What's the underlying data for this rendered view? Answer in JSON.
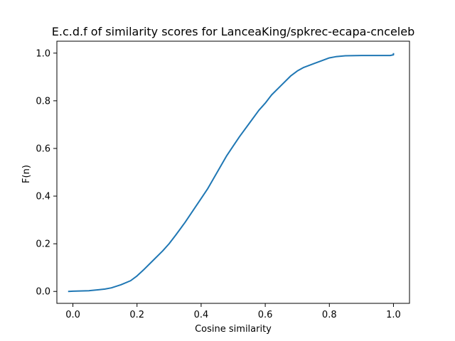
{
  "chart_data": {
    "type": "line",
    "title": "E.c.d.f of similarity scores for LanceaKing/spkrec-ecapa-cnceleb",
    "xlabel": "Cosine similarity",
    "ylabel": "F(n)",
    "xlim": [
      -0.05,
      1.05
    ],
    "ylim": [
      -0.05,
      1.05
    ],
    "x_ticks": [
      {
        "value": 0.0,
        "label": "0.0"
      },
      {
        "value": 0.2,
        "label": "0.2"
      },
      {
        "value": 0.4,
        "label": "0.4"
      },
      {
        "value": 0.6,
        "label": "0.6"
      },
      {
        "value": 0.8,
        "label": "0.8"
      },
      {
        "value": 1.0,
        "label": "1.0"
      }
    ],
    "y_ticks": [
      {
        "value": 0.0,
        "label": "0.0"
      },
      {
        "value": 0.2,
        "label": "0.2"
      },
      {
        "value": 0.4,
        "label": "0.4"
      },
      {
        "value": 0.6,
        "label": "0.6"
      },
      {
        "value": 0.8,
        "label": "0.8"
      },
      {
        "value": 1.0,
        "label": "1.0"
      }
    ],
    "grid": false,
    "series": [
      {
        "color": "#1f77b4",
        "x": [
          -0.015,
          0.0,
          0.05,
          0.08,
          0.1,
          0.12,
          0.15,
          0.18,
          0.2,
          0.22,
          0.25,
          0.28,
          0.3,
          0.32,
          0.35,
          0.38,
          0.4,
          0.42,
          0.45,
          0.48,
          0.5,
          0.52,
          0.55,
          0.58,
          0.6,
          0.62,
          0.65,
          0.68,
          0.7,
          0.72,
          0.75,
          0.78,
          0.8,
          0.82,
          0.85,
          0.9,
          0.95,
          0.99,
          1.0,
          1.0
        ],
        "y": [
          0.0,
          0.001,
          0.003,
          0.007,
          0.01,
          0.015,
          0.028,
          0.045,
          0.065,
          0.09,
          0.13,
          0.17,
          0.2,
          0.235,
          0.29,
          0.35,
          0.39,
          0.43,
          0.5,
          0.57,
          0.61,
          0.65,
          0.705,
          0.76,
          0.79,
          0.825,
          0.865,
          0.905,
          0.925,
          0.94,
          0.955,
          0.97,
          0.98,
          0.985,
          0.989,
          0.99,
          0.99,
          0.99,
          0.993,
          1.0
        ]
      }
    ]
  }
}
